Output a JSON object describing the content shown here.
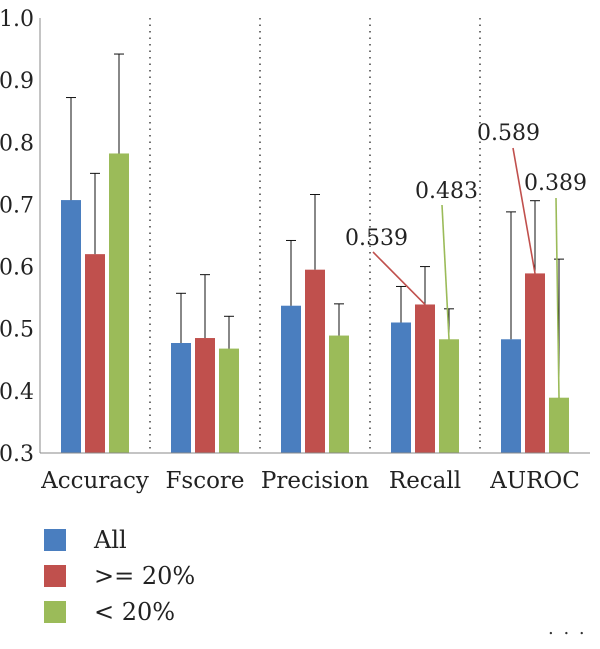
{
  "chart_data": {
    "type": "bar",
    "categories": [
      "Accuracy",
      "Fscore",
      "Precision",
      "Recall",
      "AUROC"
    ],
    "ylim": [
      0.3,
      1.0
    ],
    "yticks": [
      "0.3",
      "0.4",
      "0.5",
      "0.6",
      "0.7",
      "0.8",
      "0.9",
      "1.0"
    ],
    "grid": "vertical dotted",
    "legend_position": "bottom-left",
    "series": [
      {
        "name": "All",
        "color": "#4a7ebf",
        "values": [
          0.707,
          0.477,
          0.537,
          0.51,
          0.483
        ],
        "error_upper": [
          0.872,
          0.557,
          0.642,
          0.568,
          0.688
        ]
      },
      {
        "name": ">= 20%",
        "color": "#c0504d",
        "values": [
          0.62,
          0.485,
          0.595,
          0.539,
          0.589
        ],
        "error_upper": [
          0.75,
          0.587,
          0.716,
          0.6,
          0.706
        ]
      },
      {
        "name": "< 20%",
        "color": "#9bbb59",
        "values": [
          0.782,
          0.468,
          0.489,
          0.483,
          0.389
        ],
        "error_upper": [
          0.942,
          0.52,
          0.54,
          0.532,
          0.612
        ]
      }
    ],
    "annotations": [
      {
        "text": "0.539",
        "category": "Recall",
        "series": ">= 20%",
        "color": "#c0504d"
      },
      {
        "text": "0.483",
        "category": "Recall",
        "series": "< 20%",
        "color": "#9bbb59"
      },
      {
        "text": "0.589",
        "category": "AUROC",
        "series": ">= 20%",
        "color": "#c0504d"
      },
      {
        "text": "0.389",
        "category": "AUROC",
        "series": "< 20%",
        "color": "#9bbb59"
      }
    ]
  },
  "legend": {
    "items": [
      {
        "label": "All",
        "color": "#4a7ebf"
      },
      {
        "label": ">= 20%",
        "color": "#c0504d"
      },
      {
        "label": "< 20%",
        "color": "#9bbb59"
      }
    ]
  },
  "footer": {
    "text": ". . ."
  }
}
